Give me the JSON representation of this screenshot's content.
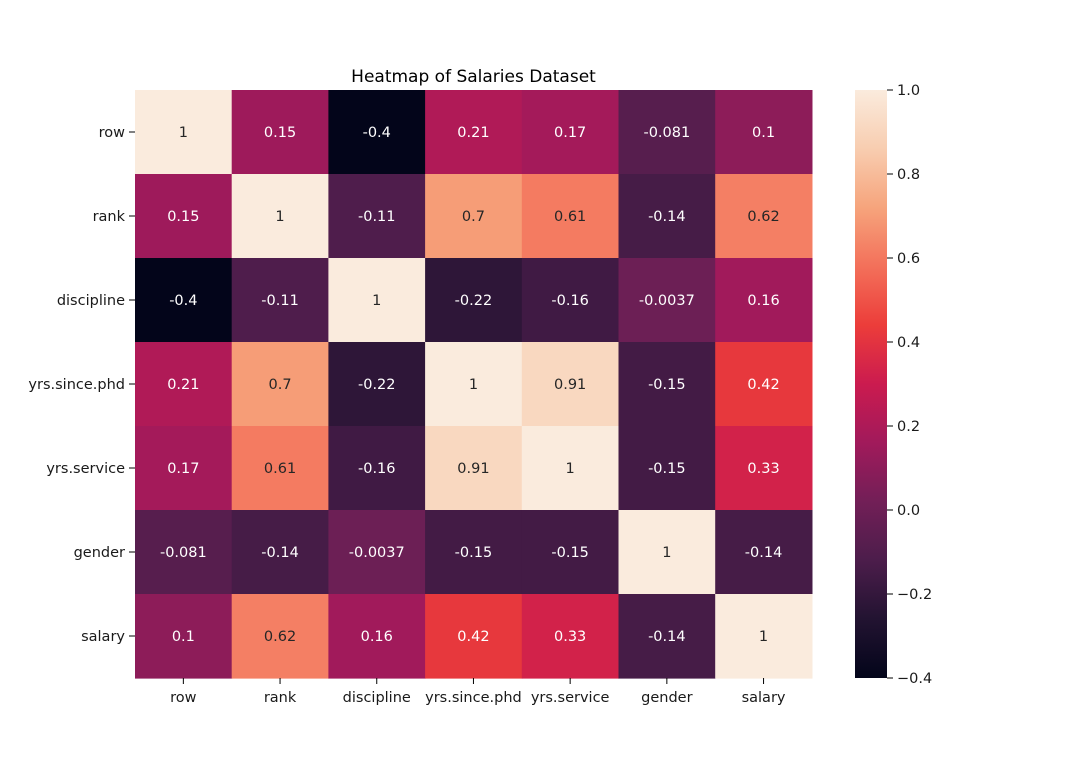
{
  "chart_data": {
    "type": "heatmap",
    "title": "Heatmap of Salaries Dataset",
    "xlabel": "",
    "ylabel": "",
    "rows": [
      "row",
      "rank",
      "discipline",
      "yrs.since.phd",
      "yrs.service",
      "gender",
      "salary"
    ],
    "columns": [
      "row",
      "rank",
      "discipline",
      "yrs.since.phd",
      "yrs.service",
      "gender",
      "salary"
    ],
    "values": [
      [
        1,
        0.15,
        -0.4,
        0.21,
        0.17,
        -0.081,
        0.1
      ],
      [
        0.15,
        1,
        -0.11,
        0.7,
        0.61,
        -0.14,
        0.62
      ],
      [
        -0.4,
        -0.11,
        1,
        -0.22,
        -0.16,
        -0.0037,
        0.16
      ],
      [
        0.21,
        0.7,
        -0.22,
        1,
        0.91,
        -0.15,
        0.42
      ],
      [
        0.17,
        0.61,
        -0.16,
        0.91,
        1,
        -0.15,
        0.33
      ],
      [
        -0.081,
        -0.14,
        -0.0037,
        -0.15,
        -0.15,
        1,
        -0.14
      ],
      [
        0.1,
        0.62,
        0.16,
        0.42,
        0.33,
        -0.14,
        1
      ]
    ],
    "annotations": [
      [
        "1",
        "0.15",
        "-0.4",
        "0.21",
        "0.17",
        "-0.081",
        "0.1"
      ],
      [
        "0.15",
        "1",
        "-0.11",
        "0.7",
        "0.61",
        "-0.14",
        "0.62"
      ],
      [
        "-0.4",
        "-0.11",
        "1",
        "-0.22",
        "-0.16",
        "-0.0037",
        "0.16"
      ],
      [
        "0.21",
        "0.7",
        "-0.22",
        "1",
        "0.91",
        "-0.15",
        "0.42"
      ],
      [
        "0.17",
        "0.61",
        "-0.16",
        "0.91",
        "1",
        "-0.15",
        "0.33"
      ],
      [
        "-0.081",
        "-0.14",
        "-0.0037",
        "-0.15",
        "-0.15",
        "1",
        "-0.14"
      ],
      [
        "0.1",
        "0.62",
        "0.16",
        "0.42",
        "0.33",
        "-0.14",
        "1"
      ]
    ],
    "colorbar": {
      "range": [
        -0.4,
        1.0
      ],
      "ticks": [
        1.0,
        0.8,
        0.6,
        0.4,
        0.2,
        0.0,
        -0.2,
        -0.4
      ],
      "tick_labels": [
        "1.0",
        "0.8",
        "0.6",
        "0.4",
        "0.2",
        "0.0",
        "−0.2",
        "−0.4"
      ]
    },
    "colormap": "rocket",
    "colormap_stops": [
      [
        0.0,
        "#03051a"
      ],
      [
        0.1,
        "#221331"
      ],
      [
        0.2,
        "#4c1d4b"
      ],
      [
        0.3,
        "#721f57"
      ],
      [
        0.4,
        "#a11a5b"
      ],
      [
        0.5,
        "#cb1b4f"
      ],
      [
        0.6,
        "#ec3d3a"
      ],
      [
        0.7,
        "#f3705a"
      ],
      [
        0.8,
        "#f6a47c"
      ],
      [
        0.9,
        "#f8cdb0"
      ],
      [
        1.0,
        "#faebdd"
      ]
    ],
    "grid": false,
    "legend": "none"
  }
}
